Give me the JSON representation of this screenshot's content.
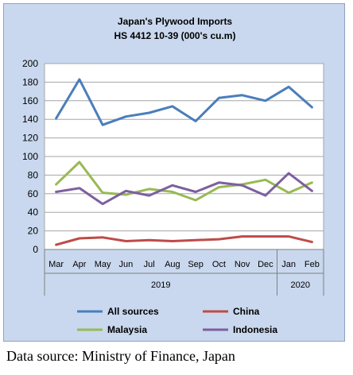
{
  "chart_data": {
    "type": "line",
    "title": "Japan's Plywood Imports",
    "subtitle": "HS 4412 10-39  (000's cu.m)",
    "categories": [
      "Mar",
      "Apr",
      "May",
      "Jun",
      "Jul",
      "Aug",
      "Sep",
      "Oct",
      "Nov",
      "Dec",
      "Jan",
      "Feb"
    ],
    "year_groups": [
      {
        "label": "2019",
        "from": 0,
        "to": 9
      },
      {
        "label": "2020",
        "from": 10,
        "to": 11
      }
    ],
    "y_ticks": [
      "0",
      "20",
      "40",
      "60",
      "80",
      "100",
      "120",
      "140",
      "160",
      "180",
      "200"
    ],
    "ylim": [
      0,
      200
    ],
    "grid": true,
    "legend_position": "bottom",
    "series": [
      {
        "name": "All sources",
        "color": "#4a7ebb",
        "values": [
          141,
          183,
          134,
          143,
          147,
          154,
          138,
          163,
          166,
          160,
          175,
          153
        ]
      },
      {
        "name": "China",
        "color": "#be4b48",
        "values": [
          5,
          12,
          13,
          9,
          10,
          9,
          10,
          11,
          14,
          14,
          14,
          8
        ]
      },
      {
        "name": "Malaysia",
        "color": "#98b954",
        "values": [
          70,
          94,
          61,
          59,
          65,
          62,
          53,
          67,
          70,
          75,
          61,
          72
        ]
      },
      {
        "name": "Indonesia",
        "color": "#7d5fa0",
        "values": [
          62,
          66,
          49,
          63,
          58,
          69,
          62,
          72,
          69,
          58,
          82,
          63
        ]
      }
    ]
  },
  "source_note": "Data source: Ministry of Finance, Japan"
}
